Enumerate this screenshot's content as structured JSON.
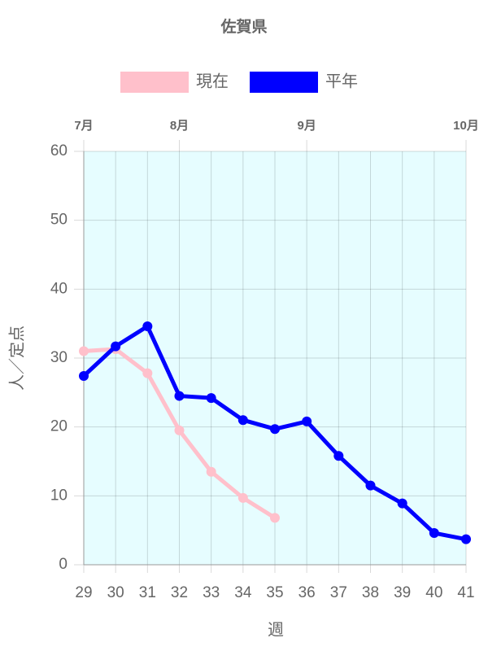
{
  "chart_data": {
    "type": "line",
    "title": "佐賀県",
    "x": [
      29,
      30,
      31,
      32,
      33,
      34,
      35,
      36,
      37,
      38,
      39,
      40,
      41
    ],
    "series": [
      {
        "name": "現在",
        "color": "#ffc0cb",
        "values": [
          31.0,
          31.3,
          27.8,
          19.5,
          13.5,
          9.7,
          6.8,
          null,
          null,
          null,
          null,
          null,
          null
        ]
      },
      {
        "name": "平年",
        "color": "#0000ff",
        "values": [
          27.4,
          31.7,
          34.6,
          24.5,
          24.2,
          21.0,
          19.7,
          20.8,
          15.8,
          11.5,
          8.9,
          4.6,
          3.7
        ]
      }
    ],
    "xlim": [
      29,
      41
    ],
    "xticks": [
      29,
      30,
      31,
      32,
      33,
      34,
      35,
      36,
      37,
      38,
      39,
      40,
      41
    ],
    "x2ticks": [
      {
        "value": 29,
        "label": "7月"
      },
      {
        "value": 32,
        "label": "8月"
      },
      {
        "value": 36,
        "label": "9月"
      },
      {
        "value": 41,
        "label": "10月"
      }
    ],
    "ylim": [
      0,
      60
    ],
    "yticks": [
      0,
      10,
      20,
      30,
      40,
      50,
      60
    ],
    "xlabel": "週",
    "ylabel": "人／定点",
    "grid": true,
    "plot_background": "#e6fdff",
    "legend": "top"
  }
}
